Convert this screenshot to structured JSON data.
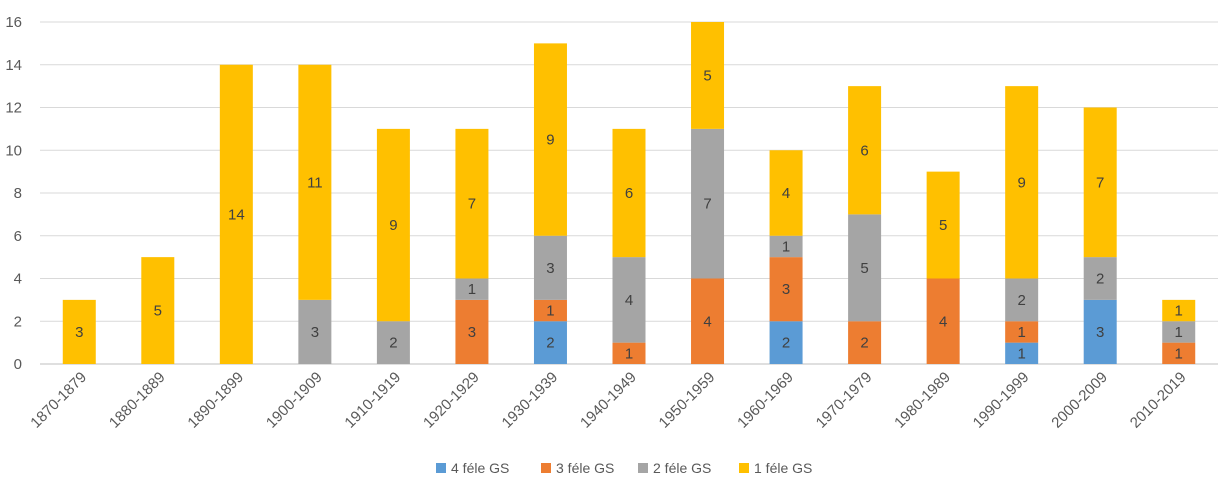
{
  "chart_data": {
    "type": "bar",
    "stacked": true,
    "categories": [
      "1870-1879",
      "1880-1889",
      "1890-1899",
      "1900-1909",
      "1910-1919",
      "1920-1929",
      "1930-1939",
      "1940-1949",
      "1950-1959",
      "1960-1969",
      "1970-1979",
      "1980-1989",
      "1990-1999",
      "2000-2009",
      "2010-2019"
    ],
    "series": [
      {
        "name": "4 féle GS",
        "color": "#5b9bd5",
        "values": [
          0,
          0,
          0,
          0,
          0,
          0,
          2,
          0,
          0,
          2,
          0,
          0,
          1,
          3,
          0
        ]
      },
      {
        "name": "3 féle GS",
        "color": "#ed7d31",
        "values": [
          0,
          0,
          0,
          0,
          0,
          3,
          1,
          1,
          4,
          3,
          2,
          4,
          1,
          0,
          1
        ]
      },
      {
        "name": "2 féle GS",
        "color": "#a5a5a5",
        "values": [
          0,
          0,
          0,
          3,
          2,
          1,
          3,
          4,
          7,
          1,
          5,
          0,
          2,
          2,
          1
        ]
      },
      {
        "name": "1 féle GS",
        "color": "#ffc000",
        "values": [
          3,
          5,
          14,
          11,
          9,
          7,
          9,
          6,
          5,
          4,
          6,
          5,
          9,
          7,
          1
        ]
      }
    ],
    "ylim": [
      0,
      16
    ],
    "yticks": [
      0,
      2,
      4,
      6,
      8,
      10,
      12,
      14,
      16
    ],
    "grid": true,
    "legend_position": "bottom",
    "data_labels": true,
    "title": "",
    "xlabel": "",
    "ylabel": ""
  }
}
